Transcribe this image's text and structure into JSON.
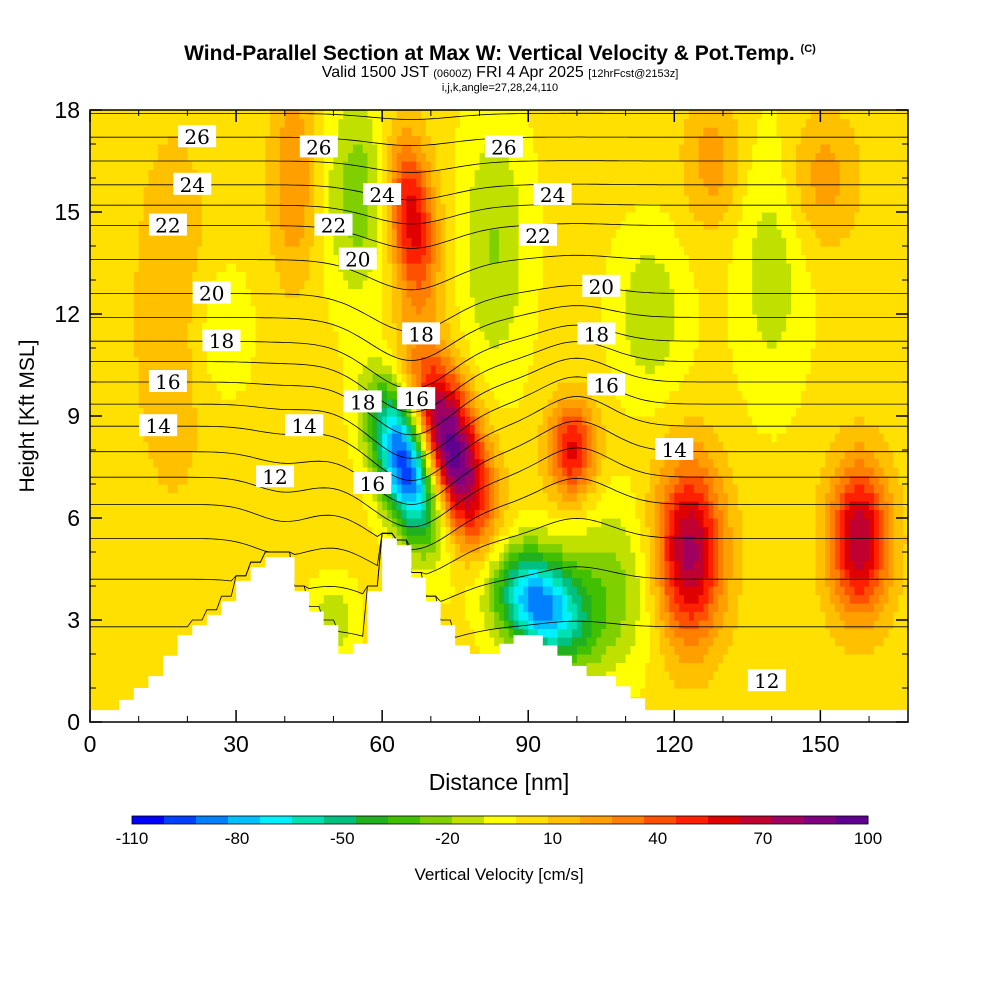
{
  "header": {
    "title": "Wind-Parallel Section at Max W: Vertical Velocity & Pot.Temp.",
    "copyright": "(C)",
    "valid_prefix": "Valid 1500 JST",
    "valid_zulu": "(0600Z)",
    "valid_date": "FRI 4 Apr 2025",
    "forecast": "[12hrFcst@2153z]",
    "indices": "i,j,k,angle=27,28,24,110"
  },
  "chart_data": {
    "type": "heatmap",
    "xlabel": "Distance [nm]",
    "ylabel": "Height [Kft MSL]",
    "xlim": [
      0,
      168
    ],
    "ylim": [
      0,
      18
    ],
    "x_ticks": [
      "0",
      "30",
      "60",
      "90",
      "120",
      "150"
    ],
    "y_ticks": [
      "0",
      "3",
      "6",
      "9",
      "12",
      "15",
      "18"
    ],
    "colorbar": {
      "label": "Vertical Velocity [cm/s]",
      "tick_labels": [
        "-110",
        "-80",
        "-50",
        "-20",
        "10",
        "40",
        "70",
        "100"
      ],
      "range": [
        -110,
        100
      ],
      "colors": [
        "#0000ff",
        "#0040ff",
        "#0080ff",
        "#00c0ff",
        "#00f0ff",
        "#00e0b0",
        "#00c080",
        "#20b020",
        "#40c000",
        "#80d000",
        "#c0e000",
        "#ffff00",
        "#ffe000",
        "#ffc000",
        "#ffa000",
        "#ff8000",
        "#ff5000",
        "#ff2000",
        "#e00000",
        "#c00030",
        "#a00060",
        "#800080",
        "#600090"
      ]
    },
    "terrain": [
      [
        0,
        0.35
      ],
      [
        6,
        0.35
      ],
      [
        6,
        0.65
      ],
      [
        9,
        0.65
      ],
      [
        9,
        1.0
      ],
      [
        12,
        1.0
      ],
      [
        12,
        1.35
      ],
      [
        15,
        1.35
      ],
      [
        15,
        1.95
      ],
      [
        18,
        1.95
      ],
      [
        18,
        2.55
      ],
      [
        21,
        2.55
      ],
      [
        21,
        2.85
      ],
      [
        24,
        2.85
      ],
      [
        24,
        3.15
      ],
      [
        27,
        3.15
      ],
      [
        27,
        3.55
      ],
      [
        30,
        3.55
      ],
      [
        30,
        4.15
      ],
      [
        33,
        4.15
      ],
      [
        33,
        4.55
      ],
      [
        36,
        4.55
      ],
      [
        36,
        4.85
      ],
      [
        42,
        4.85
      ],
      [
        42,
        3.85
      ],
      [
        45,
        3.85
      ],
      [
        45,
        3.25
      ],
      [
        48,
        3.25
      ],
      [
        48,
        2.85
      ],
      [
        51,
        2.85
      ],
      [
        51,
        2.0
      ],
      [
        54,
        2.0
      ],
      [
        54,
        2.3
      ],
      [
        57,
        2.3
      ],
      [
        57,
        3.85
      ],
      [
        60,
        3.85
      ],
      [
        60,
        5.4
      ],
      [
        63,
        5.4
      ],
      [
        63,
        5.2
      ],
      [
        66,
        5.2
      ],
      [
        66,
        4.25
      ],
      [
        69,
        4.25
      ],
      [
        69,
        3.55
      ],
      [
        72,
        3.55
      ],
      [
        72,
        2.85
      ],
      [
        75,
        2.85
      ],
      [
        75,
        2.25
      ],
      [
        78,
        2.25
      ],
      [
        78,
        2.0
      ],
      [
        84,
        2.0
      ],
      [
        84,
        2.3
      ],
      [
        87,
        2.3
      ],
      [
        87,
        2.55
      ],
      [
        93,
        2.55
      ],
      [
        93,
        2.25
      ],
      [
        96,
        2.25
      ],
      [
        96,
        1.95
      ],
      [
        99,
        1.95
      ],
      [
        99,
        1.65
      ],
      [
        102,
        1.65
      ],
      [
        102,
        1.35
      ],
      [
        108,
        1.35
      ],
      [
        108,
        1.05
      ],
      [
        111,
        1.05
      ],
      [
        111,
        0.7
      ],
      [
        114,
        0.7
      ],
      [
        114,
        0.35
      ],
      [
        168,
        0.35
      ]
    ],
    "vertical_velocity_features": [
      {
        "x": 74,
        "y": 8.0,
        "sx": 2.2,
        "sy": 2.6,
        "slope": -0.55,
        "value": 100
      },
      {
        "x": 65,
        "y": 7.6,
        "sx": 2.0,
        "sy": 2.2,
        "slope": -0.5,
        "value": -110
      },
      {
        "x": 92,
        "y": 3.5,
        "sx": 3.0,
        "sy": 1.6,
        "slope": -0.6,
        "value": -90
      },
      {
        "x": 66,
        "y": 14.8,
        "sx": 1.6,
        "sy": 2.4,
        "slope": -0.2,
        "value": 60
      },
      {
        "x": 123,
        "y": 5.0,
        "sx": 2.3,
        "sy": 2.6,
        "slope": 0,
        "value": 75
      },
      {
        "x": 158,
        "y": 5.4,
        "sx": 2.0,
        "sy": 2.2,
        "slope": 0,
        "value": 70
      },
      {
        "x": 99,
        "y": 8.0,
        "sx": 1.6,
        "sy": 1.4,
        "slope": 0,
        "value": 55
      },
      {
        "x": 55,
        "y": 15.5,
        "sx": 2.4,
        "sy": 3.0,
        "slope": 0,
        "value": -28
      },
      {
        "x": 83,
        "y": 14.0,
        "sx": 2.4,
        "sy": 4.0,
        "slope": 0,
        "value": -22
      },
      {
        "x": 107,
        "y": 4.0,
        "sx": 3.5,
        "sy": 2.5,
        "slope": 0,
        "value": -25
      },
      {
        "x": 115,
        "y": 12.0,
        "sx": 2.5,
        "sy": 2.5,
        "slope": 0,
        "value": -20
      },
      {
        "x": 27,
        "y": 11.5,
        "sx": 2.0,
        "sy": 2.0,
        "slope": 0,
        "value": -15
      },
      {
        "x": 140,
        "y": 13.5,
        "sx": 2.5,
        "sy": 4.0,
        "slope": 0,
        "value": -18
      },
      {
        "x": 50,
        "y": 3.0,
        "sx": 1.6,
        "sy": 1.2,
        "slope": 0,
        "value": -20
      },
      {
        "x": 42,
        "y": 16.0,
        "sx": 1.6,
        "sy": 3.0,
        "slope": 0,
        "value": 25
      },
      {
        "x": 17,
        "y": 12.0,
        "sx": 3.0,
        "sy": 6.0,
        "slope": 0,
        "value": 12
      },
      {
        "x": 150,
        "y": 16.0,
        "sx": 2.5,
        "sy": 2.0,
        "slope": 0,
        "value": 20
      },
      {
        "x": 128,
        "y": 16.5,
        "sx": 2.0,
        "sy": 2.0,
        "slope": 0,
        "value": 20
      }
    ],
    "theta_contours": [
      {
        "level": "12",
        "baseline": 7.2,
        "labels": [
          [
            38,
            7.2
          ],
          [
            139,
            1.2
          ]
        ]
      },
      {
        "level": "14",
        "baseline": 8.7,
        "labels": [
          [
            14,
            8.7
          ],
          [
            44,
            8.7
          ],
          [
            120,
            8.0
          ]
        ]
      },
      {
        "level": "16",
        "baseline": 10.0,
        "labels": [
          [
            16,
            10.0
          ],
          [
            58,
            7.0
          ],
          [
            67,
            9.5
          ],
          [
            106,
            9.9
          ]
        ]
      },
      {
        "level": "18",
        "baseline": 11.2,
        "labels": [
          [
            27,
            11.2
          ],
          [
            56,
            9.4
          ],
          [
            68,
            11.4
          ],
          [
            104,
            11.4
          ]
        ]
      },
      {
        "level": "20",
        "baseline": 12.6,
        "labels": [
          [
            25,
            12.6
          ],
          [
            55,
            13.6
          ],
          [
            105,
            12.8
          ]
        ]
      },
      {
        "level": "22",
        "baseline": 14.6,
        "labels": [
          [
            16,
            14.6
          ],
          [
            50,
            14.6
          ],
          [
            92,
            14.3
          ]
        ]
      },
      {
        "level": "24",
        "baseline": 15.8,
        "labels": [
          [
            21,
            15.8
          ],
          [
            60,
            15.5
          ],
          [
            95,
            15.5
          ]
        ]
      },
      {
        "level": "26",
        "baseline": 17.2,
        "labels": [
          [
            22,
            17.2
          ],
          [
            47,
            16.9
          ],
          [
            85,
            16.9
          ]
        ]
      }
    ]
  }
}
